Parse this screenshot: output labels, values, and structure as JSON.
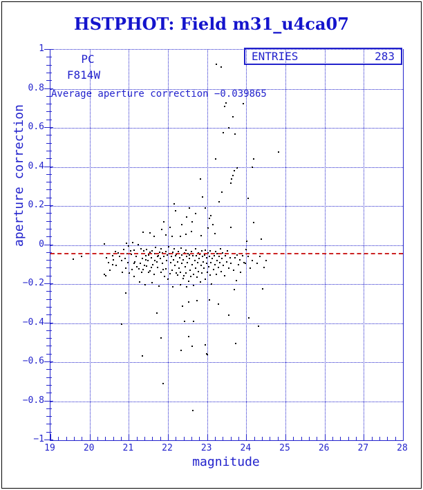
{
  "title": "HSTPHOT: Field m31_u4ca07",
  "stats_box": {
    "label": "ENTRIES",
    "value": "283"
  },
  "annotations": {
    "detector": "PC",
    "filter": "F814W",
    "average_text": "Average aperture correction −0.039865"
  },
  "colors": {
    "accent_blue": "#2222cc",
    "title_blue": "#1414cc",
    "average_line_red": "#cc2222",
    "points_black": "#000000",
    "background": "#ffffff",
    "outer_border": "#000000"
  },
  "chart_data": {
    "type": "scatter",
    "title": "HSTPHOT: Field m31_u4ca07",
    "xlabel": "magnitude",
    "ylabel": "aperture correction",
    "xlim": [
      19,
      28
    ],
    "ylim": [
      -1,
      1
    ],
    "x_ticks": [
      19,
      20,
      21,
      22,
      23,
      24,
      25,
      26,
      27,
      28
    ],
    "x_tick_labels": [
      "19",
      "20",
      "21",
      "22",
      "23",
      "24",
      "25",
      "26",
      "27",
      "28"
    ],
    "y_ticks": [
      1,
      0.8,
      0.6,
      0.4,
      0.2,
      0,
      -0.2,
      -0.4,
      -0.6,
      -0.8,
      -1
    ],
    "y_tick_labels": [
      "1",
      "0.8",
      "0.6",
      "0.4",
      "0.2",
      "0",
      "−0.2",
      "−0.4",
      "−0.6",
      "−0.8",
      "−1"
    ],
    "x_minor_step": 0.2,
    "y_minor_step": 0.04,
    "grid": true,
    "legend": "none",
    "entries": 283,
    "average_line": -0.039865,
    "points": [
      [
        23.24,
        0.926
      ],
      [
        23.35,
        0.912
      ],
      [
        23.45,
        0.71
      ],
      [
        23.92,
        0.724
      ],
      [
        23.48,
        0.727
      ],
      [
        23.66,
        0.657
      ],
      [
        23.41,
        0.575
      ],
      [
        23.71,
        0.568
      ],
      [
        23.55,
        0.6
      ],
      [
        23.21,
        0.44
      ],
      [
        24.82,
        0.475
      ],
      [
        24.18,
        0.44
      ],
      [
        24.16,
        0.398
      ],
      [
        23.76,
        0.394
      ],
      [
        23.69,
        0.38
      ],
      [
        23.66,
        0.355
      ],
      [
        23.62,
        0.337
      ],
      [
        23.6,
        0.317
      ],
      [
        22.83,
        0.337
      ],
      [
        23.37,
        0.27
      ],
      [
        22.89,
        0.247
      ],
      [
        24.05,
        0.24
      ],
      [
        23.3,
        0.222
      ],
      [
        22.15,
        0.21
      ],
      [
        22.48,
        0.144
      ],
      [
        22.62,
        0.117
      ],
      [
        24.19,
        0.115
      ],
      [
        22.36,
        0.103
      ],
      [
        23.1,
        0.152
      ],
      [
        22.95,
        0.19
      ],
      [
        23.05,
        0.135
      ],
      [
        22.7,
        0.16
      ],
      [
        21.9,
        0.12
      ],
      [
        22.2,
        0.175
      ],
      [
        23.15,
        0.105
      ],
      [
        22.55,
        0.19
      ],
      [
        21.37,
        0.067
      ],
      [
        21.54,
        0.062
      ],
      [
        21.65,
        0.046
      ],
      [
        21.84,
        0.078
      ],
      [
        22.45,
        0.055
      ],
      [
        22.31,
        0.046
      ],
      [
        22.05,
        0.09
      ],
      [
        21.95,
        0.052
      ],
      [
        22.6,
        0.07
      ],
      [
        22.85,
        0.048
      ],
      [
        23.02,
        0.085
      ],
      [
        23.2,
        0.06
      ],
      [
        22.1,
        0.043
      ],
      [
        24.39,
        0.03
      ],
      [
        23.6,
        0.09
      ],
      [
        19.58,
        -0.072
      ],
      [
        19.79,
        -0.058
      ],
      [
        20.38,
        0.005
      ],
      [
        20.94,
        0.01
      ],
      [
        20.92,
        -0.245
      ],
      [
        20.37,
        -0.15
      ],
      [
        20.42,
        -0.158
      ],
      [
        20.43,
        -0.064
      ],
      [
        20.58,
        -0.055
      ],
      [
        20.58,
        -0.101
      ],
      [
        20.65,
        -0.032
      ],
      [
        20.73,
        -0.04
      ],
      [
        20.81,
        -0.08
      ],
      [
        20.87,
        -0.023
      ],
      [
        20.92,
        -0.12
      ],
      [
        20.95,
        -0.045
      ],
      [
        21.0,
        -0.004
      ],
      [
        21.02,
        -0.145
      ],
      [
        21.07,
        -0.048
      ],
      [
        21.1,
        0.012
      ],
      [
        21.13,
        -0.094
      ],
      [
        21.13,
        -0.161
      ],
      [
        21.14,
        -0.026
      ],
      [
        21.18,
        -0.06
      ],
      [
        21.21,
        -0.11
      ],
      [
        21.24,
        0.003
      ],
      [
        21.25,
        -0.122
      ],
      [
        21.28,
        -0.189
      ],
      [
        21.31,
        -0.02
      ],
      [
        21.33,
        -0.139
      ],
      [
        21.35,
        -0.07
      ],
      [
        21.38,
        -0.03
      ],
      [
        21.4,
        -0.105
      ],
      [
        21.42,
        -0.203
      ],
      [
        21.44,
        -0.055
      ],
      [
        21.46,
        -0.024
      ],
      [
        21.46,
        -0.108
      ],
      [
        21.49,
        -0.08
      ],
      [
        21.51,
        -0.14
      ],
      [
        21.54,
        -0.037
      ],
      [
        21.54,
        -0.132
      ],
      [
        21.57,
        -0.065
      ],
      [
        21.6,
        -0.03
      ],
      [
        21.6,
        -0.192
      ],
      [
        21.62,
        -0.1
      ],
      [
        21.65,
        -0.15
      ],
      [
        21.67,
        -0.045
      ],
      [
        21.69,
        -0.012
      ],
      [
        21.71,
        -0.085
      ],
      [
        21.74,
        -0.115
      ],
      [
        21.76,
        -0.055
      ],
      [
        21.77,
        -0.21
      ],
      [
        21.78,
        -0.037
      ],
      [
        21.8,
        -0.07
      ],
      [
        21.82,
        -0.14
      ],
      [
        21.83,
        -0.02
      ],
      [
        21.85,
        -0.095
      ],
      [
        21.86,
        -0.04
      ],
      [
        21.88,
        -0.125
      ],
      [
        21.9,
        -0.06
      ],
      [
        21.92,
        -0.16
      ],
      [
        21.94,
        -0.123
      ],
      [
        21.95,
        -0.033
      ],
      [
        21.97,
        -0.08
      ],
      [
        21.99,
        -0.05
      ],
      [
        22.0,
        -0.175
      ],
      [
        22.02,
        -0.01
      ],
      [
        22.04,
        -0.045
      ],
      [
        22.05,
        -0.147
      ],
      [
        22.07,
        -0.09
      ],
      [
        22.09,
        -0.06
      ],
      [
        22.1,
        -0.13
      ],
      [
        22.12,
        -0.037
      ],
      [
        22.13,
        -0.213
      ],
      [
        22.14,
        -0.075
      ],
      [
        22.16,
        -0.02
      ],
      [
        22.17,
        -0.105
      ],
      [
        22.19,
        -0.055
      ],
      [
        22.21,
        -0.048
      ],
      [
        22.22,
        -0.145
      ],
      [
        22.24,
        -0.154
      ],
      [
        22.25,
        -0.085
      ],
      [
        22.27,
        -0.035
      ],
      [
        22.28,
        -0.12
      ],
      [
        22.3,
        -0.065
      ],
      [
        22.31,
        -0.203
      ],
      [
        22.32,
        -0.139
      ],
      [
        22.33,
        -0.015
      ],
      [
        22.35,
        -0.095
      ],
      [
        22.36,
        -0.05
      ],
      [
        22.38,
        -0.17
      ],
      [
        22.39,
        -0.075
      ],
      [
        22.41,
        -0.157
      ],
      [
        22.42,
        -0.04
      ],
      [
        22.44,
        -0.11
      ],
      [
        22.45,
        -0.025
      ],
      [
        22.46,
        -0.143
      ],
      [
        22.48,
        -0.06
      ],
      [
        22.48,
        -0.215
      ],
      [
        22.5,
        -0.09
      ],
      [
        22.51,
        -0.045
      ],
      [
        22.53,
        -0.185
      ],
      [
        22.54,
        -0.07
      ],
      [
        22.55,
        -0.051
      ],
      [
        22.57,
        -0.13
      ],
      [
        22.58,
        -0.161
      ],
      [
        22.6,
        -0.035
      ],
      [
        22.61,
        -0.1
      ],
      [
        22.63,
        -0.055
      ],
      [
        22.64,
        -0.044
      ],
      [
        22.66,
        -0.15
      ],
      [
        22.66,
        -0.206
      ],
      [
        22.68,
        -0.08
      ],
      [
        22.7,
        -0.02
      ],
      [
        22.71,
        -0.12
      ],
      [
        22.72,
        -0.055
      ],
      [
        22.74,
        -0.165
      ],
      [
        22.75,
        -0.09
      ],
      [
        22.77,
        -0.04
      ],
      [
        22.78,
        -0.135
      ],
      [
        22.8,
        -0.07
      ],
      [
        22.81,
        -0.047
      ],
      [
        22.83,
        -0.19
      ],
      [
        22.84,
        -0.105
      ],
      [
        22.86,
        -0.03
      ],
      [
        22.87,
        -0.145
      ],
      [
        22.89,
        -0.058
      ],
      [
        22.9,
        -0.085
      ],
      [
        22.92,
        -0.12
      ],
      [
        22.93,
        -0.05
      ],
      [
        22.95,
        -0.175
      ],
      [
        22.96,
        -0.025
      ],
      [
        22.98,
        -0.095
      ],
      [
        22.99,
        -0.065
      ],
      [
        23.01,
        -0.14
      ],
      [
        23.02,
        -0.04
      ],
      [
        23.04,
        -0.11
      ],
      [
        23.05,
        -0.06
      ],
      [
        23.07,
        -0.155
      ],
      [
        23.08,
        -0.03
      ],
      [
        23.1,
        -0.09
      ],
      [
        23.11,
        -0.2
      ],
      [
        23.13,
        -0.07
      ],
      [
        23.15,
        -0.045
      ],
      [
        23.16,
        -0.125
      ],
      [
        23.18,
        -0.055
      ],
      [
        23.2,
        -0.1
      ],
      [
        23.21,
        -0.035
      ],
      [
        23.23,
        -0.15
      ],
      [
        23.25,
        -0.08
      ],
      [
        23.26,
        -0.045
      ],
      [
        23.28,
        -0.115
      ],
      [
        23.3,
        -0.06
      ],
      [
        23.32,
        -0.09
      ],
      [
        23.34,
        -0.02
      ],
      [
        23.36,
        -0.135
      ],
      [
        23.38,
        -0.07
      ],
      [
        23.4,
        -0.04
      ],
      [
        23.42,
        -0.105
      ],
      [
        23.45,
        -0.158
      ],
      [
        23.47,
        -0.055
      ],
      [
        23.5,
        -0.085
      ],
      [
        23.52,
        -0.03
      ],
      [
        23.55,
        -0.12
      ],
      [
        23.56,
        -0.119
      ],
      [
        23.58,
        -0.065
      ],
      [
        23.61,
        -0.095
      ],
      [
        23.64,
        -0.045
      ],
      [
        23.67,
        -0.13
      ],
      [
        23.69,
        -0.228
      ],
      [
        23.72,
        -0.065
      ],
      [
        23.74,
        -0.182
      ],
      [
        23.77,
        -0.05
      ],
      [
        23.8,
        -0.1
      ],
      [
        23.83,
        -0.075
      ],
      [
        23.86,
        -0.14
      ],
      [
        23.9,
        -0.055
      ],
      [
        23.94,
        -0.09
      ],
      [
        23.97,
        -0.094
      ],
      [
        24.0,
        -0.023
      ],
      [
        24.01,
        0.02
      ],
      [
        24.05,
        -0.06
      ],
      [
        24.1,
        -0.12
      ],
      [
        24.15,
        -0.08
      ],
      [
        24.22,
        -0.045
      ],
      [
        24.28,
        -0.095
      ],
      [
        24.35,
        -0.06
      ],
      [
        24.41,
        -0.225
      ],
      [
        24.45,
        -0.116
      ],
      [
        24.5,
        -0.08
      ],
      [
        20.48,
        -0.09
      ],
      [
        20.52,
        -0.13
      ],
      [
        20.61,
        -0.075
      ],
      [
        20.68,
        -0.105
      ],
      [
        20.76,
        -0.058
      ],
      [
        20.84,
        -0.14
      ],
      [
        20.9,
        -0.07
      ],
      [
        20.97,
        -0.09
      ],
      [
        21.04,
        -0.03
      ],
      [
        21.09,
        -0.125
      ],
      [
        21.16,
        -0.085
      ],
      [
        21.22,
        -0.045
      ],
      [
        21.29,
        -0.095
      ],
      [
        21.36,
        -0.125
      ],
      [
        21.43,
        -0.075
      ],
      [
        21.5,
        -0.05
      ],
      [
        21.58,
        -0.115
      ],
      [
        21.66,
        -0.08
      ],
      [
        21.73,
        -0.06
      ],
      [
        20.81,
        -0.405
      ],
      [
        21.72,
        -0.348
      ],
      [
        22.37,
        -0.313
      ],
      [
        22.53,
        -0.292
      ],
      [
        22.74,
        -0.285
      ],
      [
        22.43,
        -0.39
      ],
      [
        22.65,
        -0.39
      ],
      [
        22.53,
        -0.468
      ],
      [
        23.05,
        -0.282
      ],
      [
        23.29,
        -0.303
      ],
      [
        23.56,
        -0.36
      ],
      [
        24.07,
        -0.373
      ],
      [
        24.32,
        -0.416
      ],
      [
        21.35,
        -0.568
      ],
      [
        21.83,
        -0.476
      ],
      [
        22.33,
        -0.54
      ],
      [
        22.62,
        -0.518
      ],
      [
        22.95,
        -0.511
      ],
      [
        22.99,
        -0.557
      ],
      [
        23.01,
        -0.56
      ],
      [
        23.73,
        -0.504
      ],
      [
        21.88,
        -0.71
      ],
      [
        22.64,
        -0.847
      ]
    ]
  }
}
